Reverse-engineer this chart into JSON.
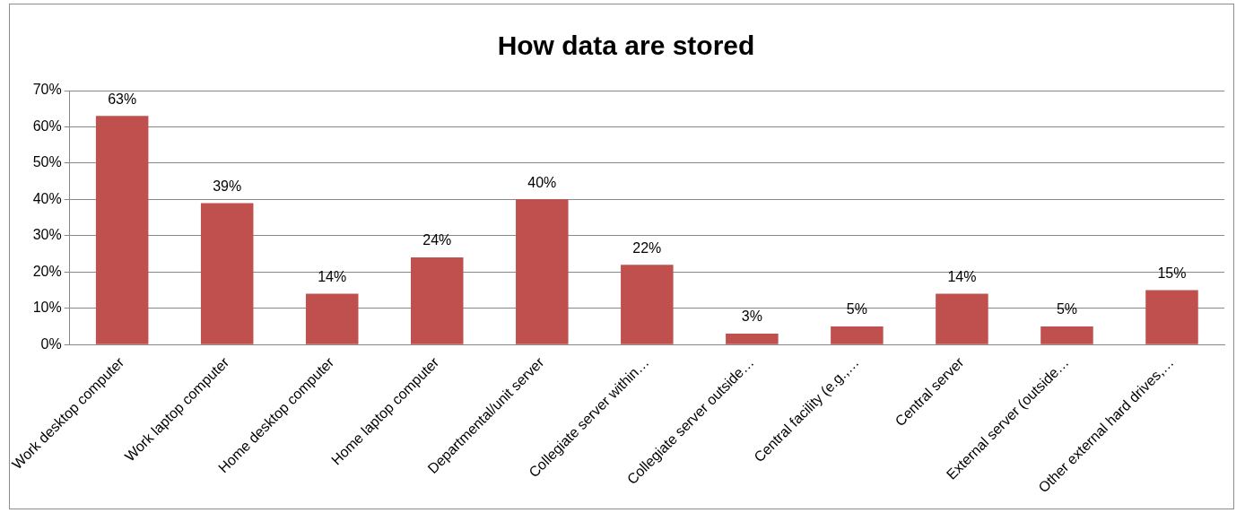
{
  "chart_data": {
    "type": "bar",
    "title": "How data are stored",
    "categories": [
      "Work desktop computer",
      "Work laptop computer",
      "Home desktop computer",
      "Home laptop computer",
      "Departmental/unit server",
      "Collegiate server within…",
      "Collegiate server outside…",
      "Central facility (e.g.,…",
      "Central server",
      "External server (outside…",
      "Other external hard drives,…"
    ],
    "values": [
      63,
      39,
      14,
      24,
      40,
      22,
      3,
      5,
      14,
      5,
      15
    ],
    "value_labels": [
      "63%",
      "39%",
      "14%",
      "24%",
      "40%",
      "22%",
      "3%",
      "5%",
      "14%",
      "5%",
      "15%"
    ],
    "color": "#c0504d",
    "ylim": [
      0,
      70
    ],
    "yticks": [
      {
        "value": 0,
        "label": "0%"
      },
      {
        "value": 10,
        "label": "10%"
      },
      {
        "value": 20,
        "label": "20%"
      },
      {
        "value": 30,
        "label": "30%"
      },
      {
        "value": 40,
        "label": "40%"
      },
      {
        "value": 50,
        "label": "50%"
      },
      {
        "value": 60,
        "label": "60%"
      },
      {
        "value": 70,
        "label": "70%"
      }
    ],
    "grid": "y",
    "legend": false
  }
}
